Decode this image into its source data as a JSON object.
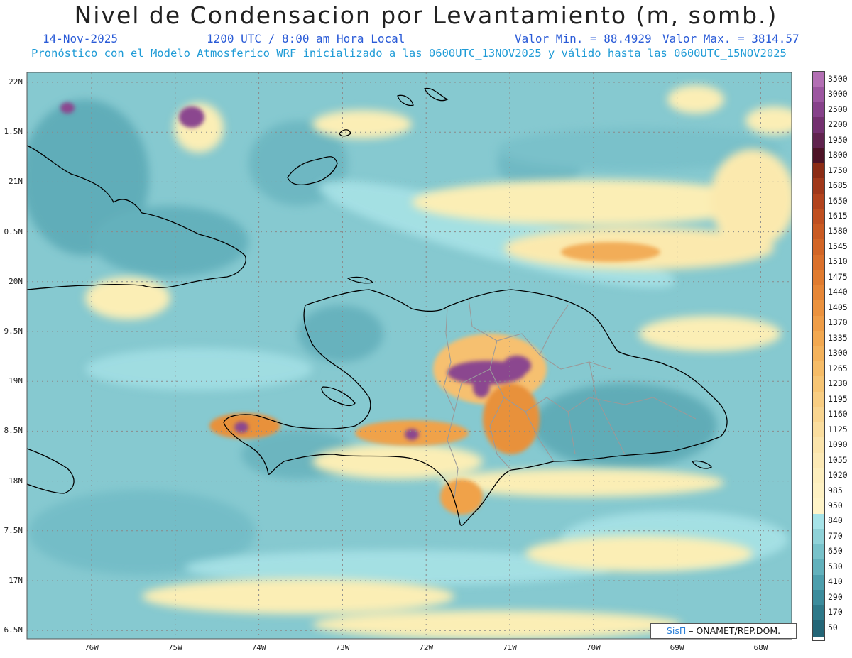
{
  "title": "Nivel de Condensacion por Levantamiento (m, somb.)",
  "date": "14-Nov-2025",
  "time": "1200 UTC / 8:00 am Hora Local",
  "value_min_label": "Valor Min. = 88.4929",
  "value_max_label": "Valor Max. = 3814.57",
  "model_info": "Pronóstico con el Modelo Atmosferico WRF inicializado a las 0600UTC_13NOV2025 y válido hasta las  0600UTC_15NOV2025",
  "lat_labels": [
    "22N",
    "1.5N",
    "21N",
    "0.5N",
    "20N",
    "9.5N",
    "19N",
    "8.5N",
    "18N",
    "7.5N",
    "17N",
    "6.5N"
  ],
  "lon_labels": [
    "76W",
    "75W",
    "74W",
    "73W",
    "72W",
    "71W",
    "70W",
    "69W",
    "68W"
  ],
  "colorbar": {
    "levels": [
      "3500",
      "3000",
      "2500",
      "2200",
      "1950",
      "1800",
      "1750",
      "1685",
      "1650",
      "1615",
      "1580",
      "1545",
      "1510",
      "1475",
      "1440",
      "1405",
      "1370",
      "1335",
      "1300",
      "1265",
      "1230",
      "1195",
      "1160",
      "1125",
      "1090",
      "1055",
      "1020",
      "985",
      "950",
      "840",
      "770",
      "650",
      "530",
      "410",
      "290",
      "170",
      "50"
    ],
    "colors": [
      "#b36fb4",
      "#9c56a0",
      "#86418a",
      "#73306f",
      "#60234e",
      "#4d1326",
      "#8b2c15",
      "#a0381a",
      "#b2431d",
      "#bf4f20",
      "#c95a22",
      "#d26526",
      "#da702b",
      "#e07b2f",
      "#e68636",
      "#eb923e",
      "#ef9d47",
      "#f2a850",
      "#f4b25b",
      "#f6bc67",
      "#f7c574",
      "#f8cd82",
      "#f9d590",
      "#fadd9e",
      "#fbe4ab",
      "#fce9b5",
      "#fdeebd",
      "#fef1c3",
      "#fff4c8",
      "#a6e3e8",
      "#8fd2d8",
      "#78c2ca",
      "#62b1bc",
      "#4d9fad",
      "#3c8c9c",
      "#2e7989",
      "#246677"
    ]
  },
  "credit": {
    "logo": "SisΠ",
    "text": "– ONAMET/REP.DOM."
  },
  "colors": {
    "ocean_base": "#7fc4cc",
    "grid": "#8a8a8a",
    "coast": "#000000",
    "province": "#9a9a9a"
  }
}
